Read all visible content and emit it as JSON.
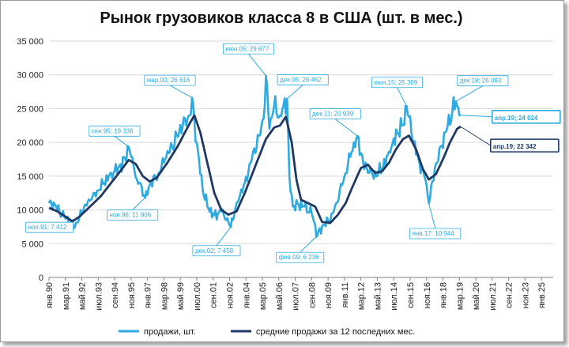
{
  "chart_data": {
    "type": "line",
    "title": "Рынок грузовиков класса 8 в США (шт. в мес.)",
    "ylim": [
      0,
      35000
    ],
    "yticks": [
      "0",
      "5 000",
      "10 000",
      "15 000",
      "20 000",
      "25 000",
      "30 000",
      "35 000"
    ],
    "x_start": "1990-01",
    "x_end": "2025-11",
    "x_ticks": [
      "янв.90",
      "мар.91",
      "май.92",
      "июл.93",
      "сен.94",
      "ноя.95",
      "янв.97",
      "мар.98",
      "май.99",
      "июл.00",
      "сен.01",
      "ноя.02",
      "янв.04",
      "мар.05",
      "май.06",
      "июл.07",
      "сен.08",
      "ноя.09",
      "янв.11",
      "мар.12",
      "май.13",
      "июл.14",
      "сен.15",
      "ноя.16",
      "янв.18",
      "мар.19",
      "май.20",
      "июл.21",
      "сен.22",
      "ноя.23",
      "янв.25"
    ],
    "grid": true,
    "legend_position": "bottom",
    "colors": {
      "sales": "#2eaae1",
      "avg": "#1f3864"
    },
    "series": [
      {
        "name": "продажи, шт.",
        "key": "sales",
        "anchors": [
          [
            "1990-01",
            11000
          ],
          [
            "1990-06",
            10800
          ],
          [
            "1990-12",
            9200
          ],
          [
            "1991-04",
            8800
          ],
          [
            "1991-08",
            8200
          ],
          [
            "1991-11",
            7412
          ],
          [
            "1992-03",
            9000
          ],
          [
            "1992-08",
            10800
          ],
          [
            "1993-01",
            11500
          ],
          [
            "1993-06",
            12800
          ],
          [
            "1993-12",
            14000
          ],
          [
            "1994-06",
            15500
          ],
          [
            "1994-12",
            16200
          ],
          [
            "1995-06",
            17600
          ],
          [
            "1995-09",
            19336
          ],
          [
            "1995-12",
            17800
          ],
          [
            "1996-04",
            14500
          ],
          [
            "1996-08",
            13500
          ],
          [
            "1996-11",
            11806
          ],
          [
            "1997-04",
            14000
          ],
          [
            "1997-10",
            15200
          ],
          [
            "1998-04",
            17500
          ],
          [
            "1998-10",
            19500
          ],
          [
            "1999-04",
            21500
          ],
          [
            "1999-09",
            23500
          ],
          [
            "2000-01",
            24000
          ],
          [
            "2000-03",
            26616
          ],
          [
            "2000-07",
            20000
          ],
          [
            "2000-12",
            13000
          ],
          [
            "2001-05",
            10200
          ],
          [
            "2001-10",
            9200
          ],
          [
            "2002-04",
            9800
          ],
          [
            "2002-08",
            8500
          ],
          [
            "2002-12",
            7458
          ],
          [
            "2003-05",
            11000
          ],
          [
            "2003-12",
            14000
          ],
          [
            "2004-06",
            17500
          ],
          [
            "2004-12",
            21000
          ],
          [
            "2005-04",
            23500
          ],
          [
            "2005-06",
            29877
          ],
          [
            "2005-09",
            22000
          ],
          [
            "2006-01",
            25500
          ],
          [
            "2006-06",
            24000
          ],
          [
            "2006-12",
            26462
          ],
          [
            "2007-02",
            15000
          ],
          [
            "2007-05",
            10500
          ],
          [
            "2007-10",
            10800
          ],
          [
            "2008-03",
            10500
          ],
          [
            "2008-09",
            9500
          ],
          [
            "2009-02",
            6236
          ],
          [
            "2009-07",
            7800
          ],
          [
            "2010-01",
            8500
          ],
          [
            "2010-06",
            11000
          ],
          [
            "2011-01",
            15000
          ],
          [
            "2011-07",
            18500
          ],
          [
            "2011-12",
            20939
          ],
          [
            "2012-05",
            17000
          ],
          [
            "2012-10",
            15500
          ],
          [
            "2013-04",
            15000
          ],
          [
            "2013-10",
            16500
          ],
          [
            "2014-04",
            18500
          ],
          [
            "2014-10",
            21500
          ],
          [
            "2015-03",
            22500
          ],
          [
            "2015-06",
            25369
          ],
          [
            "2015-10",
            21500
          ],
          [
            "2016-04",
            17500
          ],
          [
            "2016-10",
            14500
          ],
          [
            "2017-01",
            10944
          ],
          [
            "2017-06",
            16000
          ],
          [
            "2017-12",
            19500
          ],
          [
            "2018-05",
            22500
          ],
          [
            "2018-12",
            26083
          ],
          [
            "2019-03",
            24000
          ],
          [
            "2019-04",
            24024
          ]
        ]
      },
      {
        "name": "средние продажи за 12 последних мес.",
        "key": "avg",
        "anchors": [
          [
            "1990-01",
            10300
          ],
          [
            "1990-08",
            9800
          ],
          [
            "1991-03",
            9000
          ],
          [
            "1991-09",
            8300
          ],
          [
            "1992-03",
            9000
          ],
          [
            "1992-12",
            10500
          ],
          [
            "1993-09",
            12000
          ],
          [
            "1994-06",
            14000
          ],
          [
            "1995-03",
            16000
          ],
          [
            "1995-09",
            17400
          ],
          [
            "1996-03",
            16800
          ],
          [
            "1996-09",
            15000
          ],
          [
            "1997-03",
            14200
          ],
          [
            "1997-09",
            14800
          ],
          [
            "1998-06",
            17000
          ],
          [
            "1999-03",
            19500
          ],
          [
            "1999-12",
            22500
          ],
          [
            "2000-05",
            24000
          ],
          [
            "2000-10",
            21500
          ],
          [
            "2001-04",
            17000
          ],
          [
            "2001-10",
            12500
          ],
          [
            "2002-04",
            10000
          ],
          [
            "2002-10",
            9300
          ],
          [
            "2003-05",
            9800
          ],
          [
            "2003-12",
            12500
          ],
          [
            "2004-09",
            16500
          ],
          [
            "2005-06",
            20500
          ],
          [
            "2006-01",
            22200
          ],
          [
            "2006-06",
            22500
          ],
          [
            "2006-11",
            23800
          ],
          [
            "2007-04",
            20000
          ],
          [
            "2007-08",
            14500
          ],
          [
            "2007-12",
            11500
          ],
          [
            "2008-06",
            11000
          ],
          [
            "2008-12",
            10500
          ],
          [
            "2009-06",
            8200
          ],
          [
            "2010-01",
            8100
          ],
          [
            "2010-07",
            9200
          ],
          [
            "2011-02",
            11000
          ],
          [
            "2011-08",
            13500
          ],
          [
            "2012-03",
            16200
          ],
          [
            "2012-09",
            16700
          ],
          [
            "2013-03",
            15500
          ],
          [
            "2013-09",
            15700
          ],
          [
            "2014-03",
            17000
          ],
          [
            "2014-09",
            19000
          ],
          [
            "2015-03",
            20500
          ],
          [
            "2015-08",
            21000
          ],
          [
            "2016-02",
            19000
          ],
          [
            "2016-08",
            16000
          ],
          [
            "2017-01",
            14500
          ],
          [
            "2017-07",
            15300
          ],
          [
            "2018-01",
            17500
          ],
          [
            "2018-07",
            20000
          ],
          [
            "2019-01",
            22000
          ],
          [
            "2019-04",
            22342
          ]
        ]
      }
    ],
    "annotations": [
      {
        "label": "ноя.91; 7 412",
        "date": "1991-11",
        "value": 7412,
        "series": "sales"
      },
      {
        "label": "сен.95; 19 336",
        "date": "1995-09",
        "value": 19336,
        "series": "sales"
      },
      {
        "label": "ноя.96; 11 806",
        "date": "1996-11",
        "value": 11806,
        "series": "sales"
      },
      {
        "label": "мар.00; 26 616",
        "date": "2000-03",
        "value": 26616,
        "series": "sales"
      },
      {
        "label": "дек.02; 7 458",
        "date": "2002-12",
        "value": 7458,
        "series": "sales"
      },
      {
        "label": "июн.05; 29 877",
        "date": "2005-06",
        "value": 29877,
        "series": "sales"
      },
      {
        "label": "дек.06; 26 462",
        "date": "2006-12",
        "value": 26462,
        "series": "sales"
      },
      {
        "label": "фев.09; 6 236",
        "date": "2009-02",
        "value": 6236,
        "series": "sales"
      },
      {
        "label": "дек.11; 20 939",
        "date": "2011-12",
        "value": 20939,
        "series": "sales"
      },
      {
        "label": "июн.15; 25 369",
        "date": "2015-06",
        "value": 25369,
        "series": "sales"
      },
      {
        "label": "янв.17; 10 944",
        "date": "2017-01",
        "value": 10944,
        "series": "sales"
      },
      {
        "label": "дек.18; 26 083",
        "date": "2018-12",
        "value": 26083,
        "series": "sales"
      },
      {
        "label": "апр.19; 24 024",
        "date": "2019-04",
        "value": 24024,
        "series": "sales"
      },
      {
        "label": "апр.19; 22 342",
        "date": "2019-04",
        "value": 22342,
        "series": "avg"
      }
    ]
  }
}
